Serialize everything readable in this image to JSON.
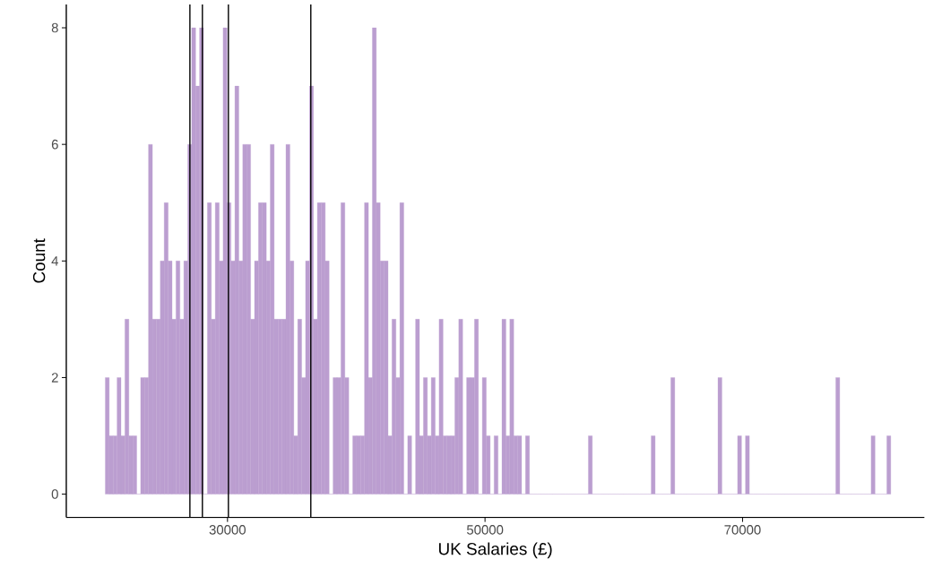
{
  "chart_data": {
    "type": "histogram",
    "xlabel": "UK Salaries (£)",
    "ylabel": "Count",
    "color": "#bb9ed0",
    "bins": [
      20510,
      20815,
      21120,
      21425,
      21730,
      22035,
      22340,
      22645,
      22950,
      23255,
      23560,
      23865,
      24170,
      24475,
      24780,
      25085,
      25390,
      25695,
      26000,
      26305,
      26610,
      26915,
      27220,
      27525,
      27830,
      28135,
      28440,
      28745,
      29050,
      29355,
      29660,
      29965,
      30270,
      30575,
      30880,
      31185,
      31490,
      31795,
      32100,
      32405,
      32710,
      33015,
      33320,
      33625,
      33930,
      34235,
      34540,
      34845,
      35150,
      35455,
      35760,
      36065,
      36370,
      36675,
      36980,
      37285,
      37590,
      37895,
      38200,
      38505,
      38810,
      39115,
      39420,
      39725,
      40030,
      40335,
      40640,
      40945,
      41250,
      41555,
      41860,
      42165,
      42470,
      42775,
      43080,
      43385,
      43690,
      43995,
      44300,
      44605,
      44910,
      45215,
      45520,
      45825,
      46130,
      46435,
      46740,
      47045,
      47350,
      47655,
      47960,
      48265,
      48570,
      48875,
      49180,
      49485,
      49790,
      50095,
      50400,
      50705,
      51010,
      51315,
      51620,
      51925,
      52230,
      52535,
      52840,
      53145,
      53450,
      53755,
      54060,
      54365,
      54670,
      54975,
      55280,
      55585,
      55890,
      56195,
      56500,
      56805,
      57110,
      57415,
      57720,
      58025,
      58330,
      58635,
      58940,
      59245,
      59550,
      59855,
      60160,
      60465,
      60770,
      61075,
      61380,
      61685,
      61990,
      62295,
      62600,
      62905,
      63210,
      63515,
      63820,
      64125,
      64430,
      64735,
      65040,
      65345,
      65650,
      65955,
      66260,
      66565,
      66870,
      67175,
      67480,
      67785,
      68090,
      68395,
      68700,
      69005,
      69310,
      69615,
      69920,
      70225,
      70530,
      70835,
      71140,
      71445,
      71750,
      72055,
      72360,
      72665,
      72970,
      73275,
      73580,
      73885,
      74190,
      74495,
      74800,
      75105,
      75410,
      75715,
      76020,
      76325,
      76630,
      76935,
      77240,
      77545,
      77850,
      78155,
      78460,
      78765,
      79070,
      79375,
      79680,
      79985,
      80290,
      80595,
      80900,
      81205,
      81510
    ],
    "values": [
      2,
      1,
      1,
      2,
      1,
      3,
      1,
      1,
      0,
      2,
      2,
      6,
      3,
      3,
      4,
      5,
      4,
      3,
      4,
      3,
      4,
      6,
      8,
      7,
      8,
      0,
      5,
      3,
      5,
      4,
      8,
      5,
      4,
      7,
      4,
      6,
      6,
      3,
      4,
      5,
      5,
      4,
      6,
      3,
      3,
      3,
      6,
      4,
      1,
      3,
      2,
      4,
      7,
      3,
      5,
      5,
      4,
      0,
      2,
      2,
      5,
      2,
      0,
      1,
      1,
      1,
      5,
      2,
      8,
      5,
      4,
      4,
      1,
      3,
      2,
      5,
      0,
      1,
      0,
      3,
      1,
      2,
      1,
      2,
      1,
      3,
      1,
      1,
      1,
      2,
      3,
      0,
      2,
      2,
      3,
      0,
      2,
      1,
      0,
      1,
      0,
      3,
      1,
      3,
      1,
      1,
      0,
      1,
      0,
      0,
      0,
      0,
      0,
      0,
      0,
      0,
      0,
      0,
      0,
      0,
      0,
      0,
      0,
      1,
      0,
      0,
      0,
      0,
      0,
      0,
      0,
      0,
      0,
      0,
      0,
      0,
      0,
      0,
      0,
      1,
      0,
      0,
      0,
      0,
      2,
      0,
      0,
      0,
      0,
      0,
      0,
      0,
      0,
      0,
      0,
      0,
      2,
      0,
      0,
      0,
      0,
      1,
      0,
      1,
      0,
      0,
      0,
      0,
      0,
      0,
      0,
      0,
      0,
      0,
      0,
      0,
      0,
      0,
      0,
      0,
      0,
      0,
      0,
      0,
      0,
      0,
      2,
      0,
      0,
      0,
      0,
      0,
      0,
      0,
      0,
      1,
      0,
      0,
      0,
      1
    ],
    "xlim": [
      17480,
      84120
    ],
    "ylim": [
      -0.4,
      8.4
    ],
    "xticks": [
      30000,
      50000,
      70000
    ],
    "yticks": [
      0,
      2,
      4,
      6,
      8
    ],
    "grid": false,
    "ref_lines": [
      {
        "axis": "x",
        "value": 27080,
        "color": "#000000"
      },
      {
        "axis": "x",
        "value": 28050,
        "color": "#000000"
      },
      {
        "axis": "x",
        "value": 30070,
        "color": "#000000"
      },
      {
        "axis": "x",
        "value": 36470,
        "color": "#000000"
      }
    ]
  }
}
